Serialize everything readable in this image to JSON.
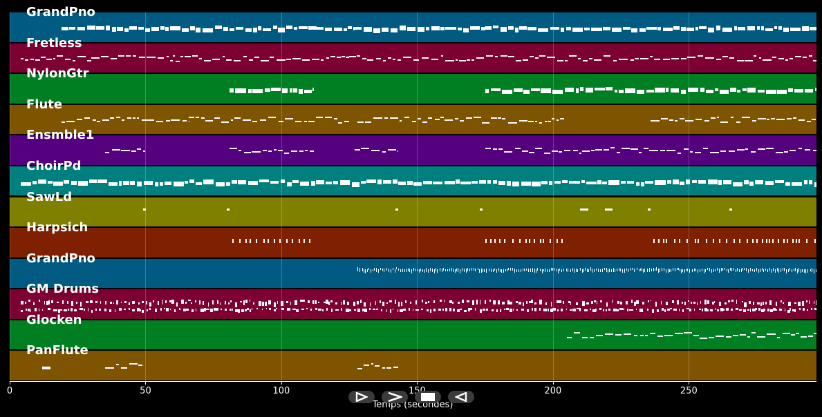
{
  "xaxis": {
    "label": "Temps (secondes)",
    "max": 297,
    "ticks": [
      {
        "value": 0,
        "label": "0"
      },
      {
        "value": 50,
        "label": "50"
      },
      {
        "value": 100,
        "label": "100"
      },
      {
        "value": 150,
        "label": "150"
      },
      {
        "value": 200,
        "label": "200"
      },
      {
        "value": 250,
        "label": "250"
      }
    ]
  },
  "tracks": [
    {
      "name": "GrandPno",
      "color": "#005a82",
      "notes": [
        [
          19,
          50,
          "thick"
        ],
        [
          50,
          113,
          "thick"
        ],
        [
          113,
          127,
          "thick"
        ],
        [
          127,
          175,
          "thick"
        ],
        [
          175,
          297,
          "thick"
        ]
      ]
    },
    {
      "name": "Fretless",
      "color": "#7d0032",
      "notes": [
        [
          4,
          30,
          "line"
        ],
        [
          30,
          60,
          "line"
        ],
        [
          60,
          125,
          "line"
        ],
        [
          125,
          297,
          "line"
        ]
      ]
    },
    {
      "name": "NylonGtr",
      "color": "#007f22",
      "notes": [
        [
          81,
          112,
          "thick"
        ],
        [
          175,
          297,
          "thick"
        ]
      ]
    },
    {
      "name": "Flute",
      "color": "#7f5400",
      "notes": [
        [
          19,
          34,
          "line"
        ],
        [
          34,
          50,
          "line"
        ],
        [
          50,
          66,
          "line"
        ],
        [
          66,
          125,
          "line"
        ],
        [
          128,
          160,
          "line"
        ],
        [
          160,
          204,
          "line"
        ],
        [
          236,
          297,
          "line"
        ]
      ]
    },
    {
      "name": "Ensmble1",
      "color": "#55007f",
      "notes": [
        [
          35,
          50,
          "line"
        ],
        [
          81,
          112,
          "line"
        ],
        [
          127,
          143,
          "line"
        ],
        [
          175,
          297,
          "line"
        ]
      ]
    },
    {
      "name": "ChoirPd",
      "color": "#007f7f",
      "notes": [
        [
          4,
          297,
          "thick"
        ]
      ]
    },
    {
      "name": "SawLd",
      "color": "#7f7f00",
      "notes": [
        [
          49,
          50,
          "dot"
        ],
        [
          80,
          81,
          "dot"
        ],
        [
          142,
          143,
          "dot"
        ],
        [
          173,
          174,
          "dot"
        ],
        [
          210,
          213,
          "dot"
        ],
        [
          219,
          222,
          "dot"
        ],
        [
          235,
          236,
          "dot"
        ],
        [
          265,
          266,
          "dot"
        ]
      ]
    },
    {
      "name": "Harpsich",
      "color": "#7f2100",
      "notes": [
        [
          82,
          112,
          "ticks"
        ],
        [
          175,
          204,
          "ticks"
        ],
        [
          237,
          297,
          "ticks"
        ]
      ]
    },
    {
      "name": "GrandPno",
      "color": "#005a82",
      "notes": [
        [
          128,
          297,
          "fine"
        ]
      ]
    },
    {
      "name": "GM Drums",
      "color": "#7d0032",
      "notes": [
        [
          4,
          297,
          "drums"
        ]
      ]
    },
    {
      "name": "Glocken",
      "color": "#007f22",
      "notes": [
        [
          205,
          297,
          "line"
        ]
      ]
    },
    {
      "name": "PanFlute",
      "color": "#7f5400",
      "notes": [
        [
          12,
          15,
          "thick"
        ],
        [
          35,
          49,
          "line"
        ],
        [
          128,
          143,
          "line"
        ]
      ]
    }
  ],
  "controls": [
    {
      "name": "rewind-button",
      "icon": "rewind-icon"
    },
    {
      "name": "play-button",
      "icon": "play-icon"
    },
    {
      "name": "stop-button",
      "icon": "stop-icon"
    },
    {
      "name": "back-button",
      "icon": "back-icon"
    }
  ]
}
